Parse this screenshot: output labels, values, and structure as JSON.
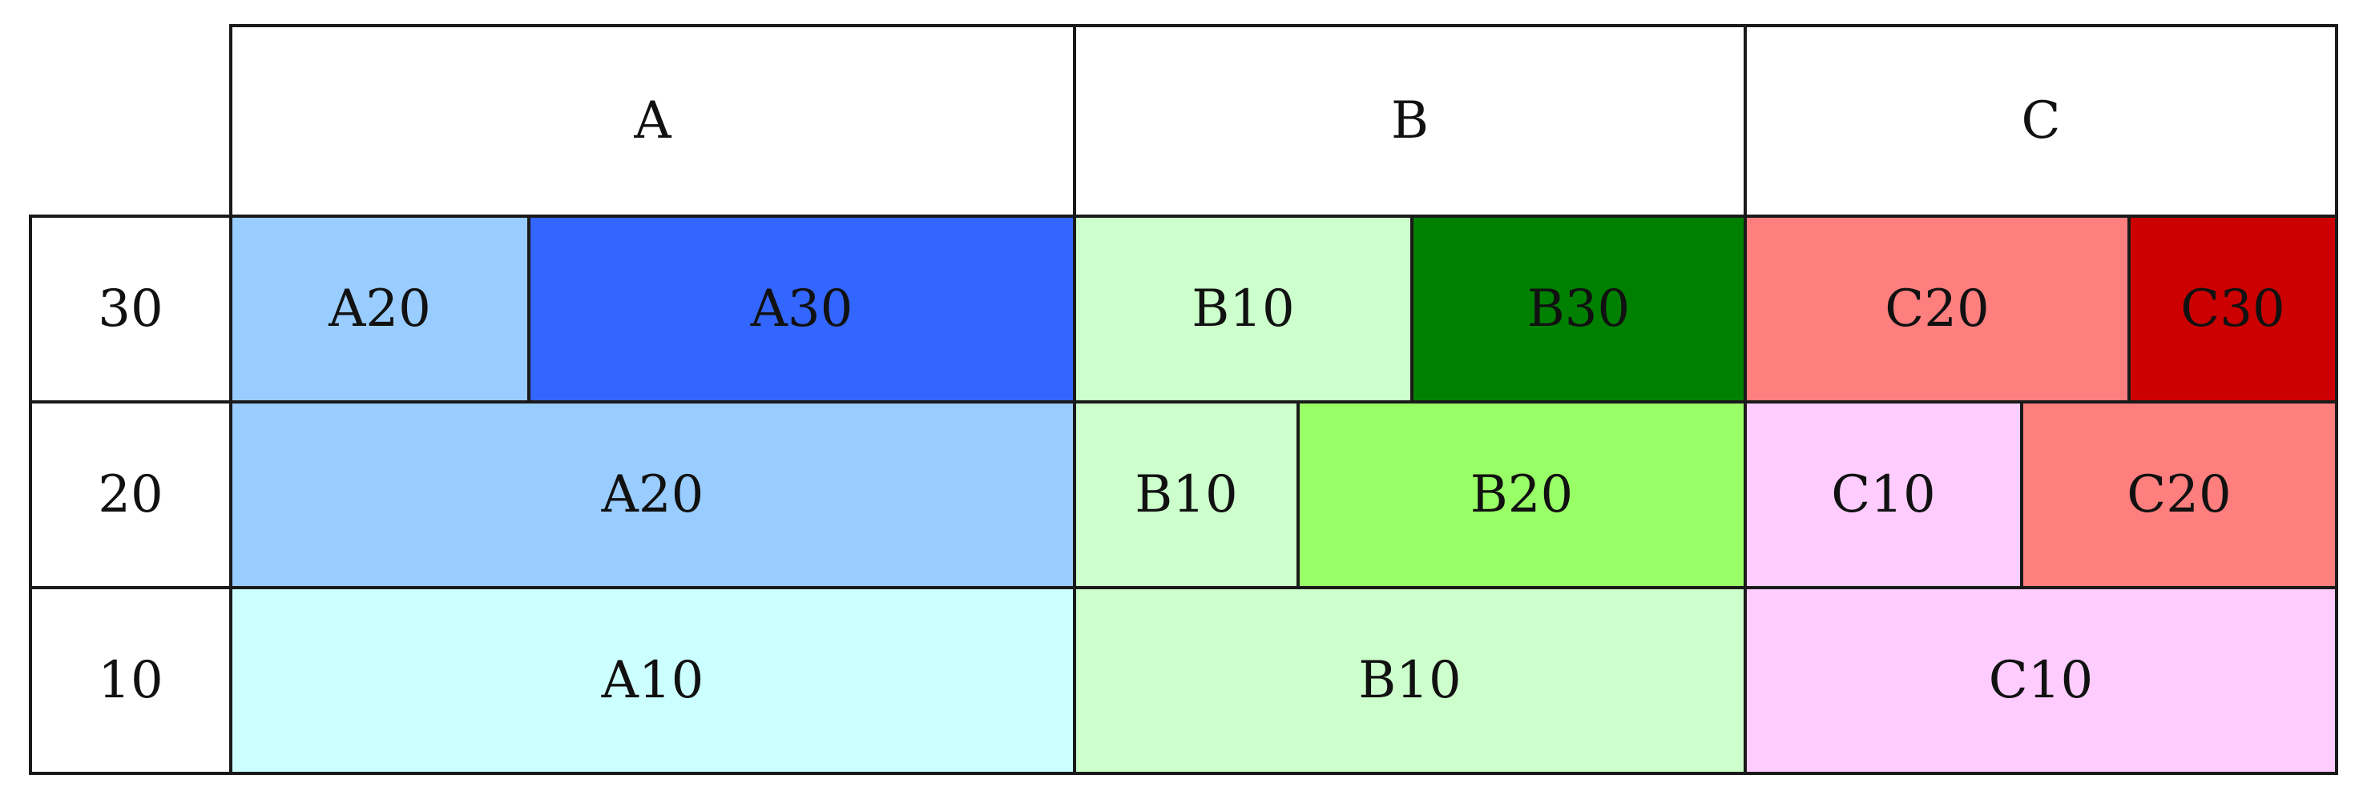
{
  "header": {
    "columns": [
      {
        "label": "A"
      },
      {
        "label": "B"
      },
      {
        "label": "C"
      }
    ]
  },
  "rows": [
    {
      "label": "30",
      "groups": [
        [
          {
            "label": "A20",
            "color": "#99ccff"
          },
          {
            "label": "A30",
            "color": "#3366ff"
          }
        ],
        [
          {
            "label": "B10",
            "color": "#ccffcc"
          },
          {
            "label": "B30",
            "color": "#008000"
          }
        ],
        [
          {
            "label": "C20",
            "color": "#ff7f7f"
          },
          {
            "label": "C30",
            "color": "#cc0000"
          }
        ]
      ]
    },
    {
      "label": "20",
      "groups": [
        [
          {
            "label": "A20",
            "color": "#99ccff"
          }
        ],
        [
          {
            "label": "B10",
            "color": "#ccffcc"
          },
          {
            "label": "B20",
            "color": "#99ff66"
          }
        ],
        [
          {
            "label": "C10",
            "color": "#ffccff"
          },
          {
            "label": "C20",
            "color": "#ff7f7f"
          }
        ]
      ]
    },
    {
      "label": "10",
      "groups": [
        [
          {
            "label": "A10",
            "color": "#ccffff"
          }
        ],
        [
          {
            "label": "B10",
            "color": "#ccffcc"
          }
        ],
        [
          {
            "label": "C10",
            "color": "#ffccff"
          }
        ]
      ]
    }
  ]
}
